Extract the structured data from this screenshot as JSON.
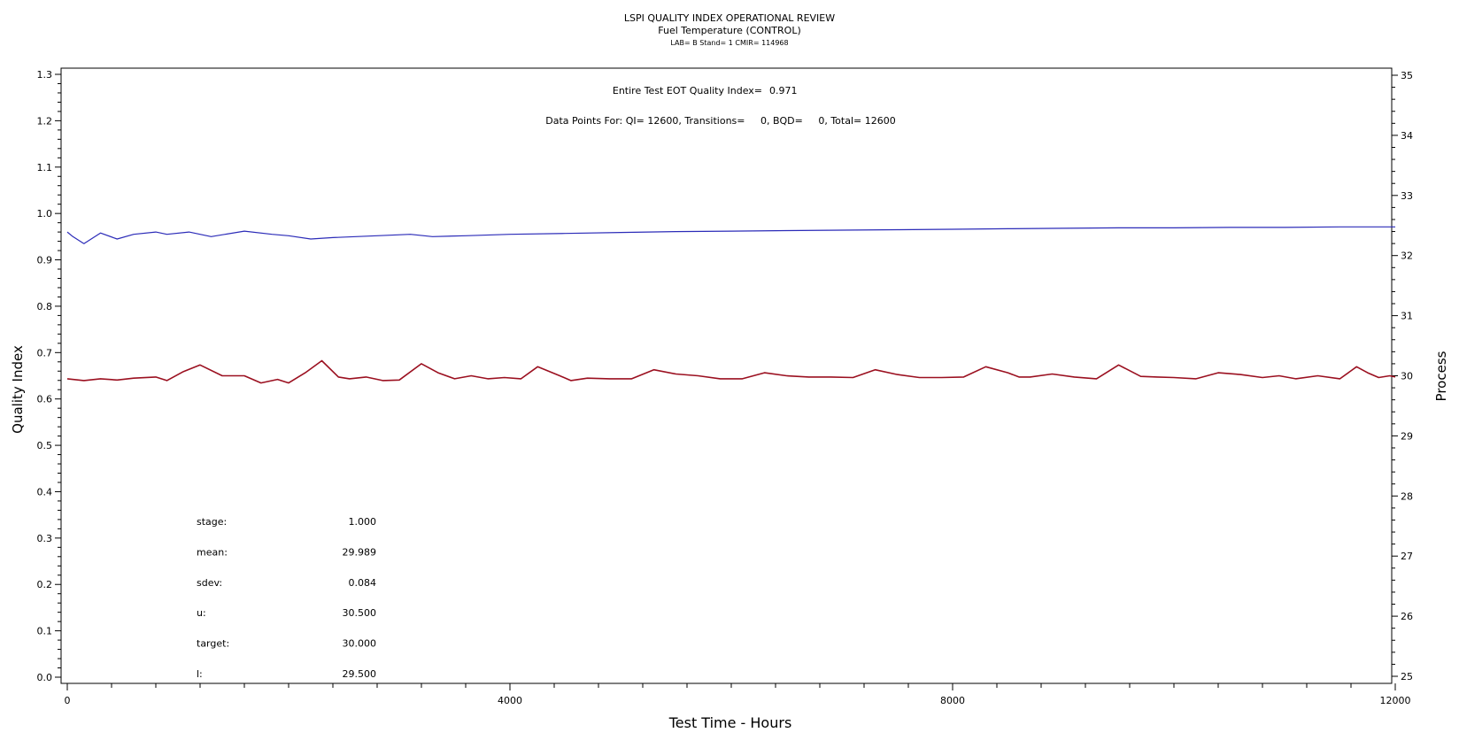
{
  "header": {
    "title": "LSPI QUALITY INDEX OPERATIONAL REVIEW",
    "subtitle": "Fuel Temperature (CONTROL)",
    "info": "LAB= B Stand= 1 CMIR= 114968"
  },
  "annotations": {
    "eot_label": "Entire Test EOT Quality Index=",
    "eot_value": "0.971",
    "points_line": "Data Points For: QI= 12600, Transitions=     0, BQD=     0, Total= 12600"
  },
  "stats": [
    {
      "label": "stage:",
      "value": "1.000"
    },
    {
      "label": "mean:",
      "value": "29.989"
    },
    {
      "label": "sdev:",
      "value": "0.084"
    },
    {
      "label": "u:",
      "value": "30.500"
    },
    {
      "label": "target:",
      "value": "30.000"
    },
    {
      "label": "l:",
      "value": "29.500"
    }
  ],
  "colors": {
    "quality_index": "#2b2bb8",
    "process": "#9b1020",
    "axis": "#000000"
  },
  "chart_data": {
    "type": "line",
    "title": "LSPI QUALITY INDEX OPERATIONAL REVIEW",
    "xlabel": "Test Time - Hours",
    "ylabel": "Quality Index",
    "y2label": "Process",
    "xlim": [
      0,
      12000
    ],
    "ylim": [
      0.0,
      1.3
    ],
    "y2lim": [
      25,
      35
    ],
    "x_ticks": [
      "0",
      "4000",
      "8000",
      "12000"
    ],
    "y_ticks": [
      "0.0",
      "0.1",
      "0.2",
      "0.3",
      "0.4",
      "0.5",
      "0.6",
      "0.7",
      "0.8",
      "0.9",
      "1.0",
      "1.1",
      "1.2",
      "1.3"
    ],
    "y2_ticks": [
      "25",
      "26",
      "27",
      "28",
      "29",
      "30",
      "31",
      "32",
      "33",
      "34",
      "35"
    ],
    "grid": false,
    "series": [
      {
        "axis": "left",
        "x": [
          0,
          50,
          150,
          300,
          450,
          600,
          800,
          900,
          1100,
          1300,
          1600,
          1850,
          2000,
          2200,
          2400,
          2800,
          3100,
          3300,
          3600,
          4000,
          4500,
          5000,
          5500,
          6000,
          6500,
          7000,
          7500,
          8000,
          8500,
          9000,
          9500,
          10000,
          10500,
          11000,
          11500,
          12000
        ],
        "y": [
          0.96,
          0.95,
          0.935,
          0.958,
          0.945,
          0.955,
          0.96,
          0.955,
          0.96,
          0.95,
          0.962,
          0.955,
          0.952,
          0.945,
          0.948,
          0.952,
          0.955,
          0.95,
          0.952,
          0.955,
          0.957,
          0.959,
          0.961,
          0.962,
          0.963,
          0.964,
          0.965,
          0.966,
          0.967,
          0.968,
          0.969,
          0.969,
          0.97,
          0.97,
          0.971,
          0.971
        ]
      },
      {
        "axis": "right",
        "x": [
          0,
          150,
          300,
          450,
          600,
          800,
          900,
          1050,
          1200,
          1400,
          1600,
          1750,
          1900,
          2000,
          2150,
          2300,
          2450,
          2550,
          2700,
          2850,
          3000,
          3200,
          3350,
          3500,
          3650,
          3800,
          3950,
          4100,
          4250,
          4450,
          4550,
          4700,
          4900,
          5100,
          5300,
          5500,
          5700,
          5900,
          6100,
          6300,
          6500,
          6700,
          6900,
          7100,
          7300,
          7500,
          7700,
          7900,
          8100,
          8300,
          8500,
          8600,
          8700,
          8900,
          9100,
          9300,
          9500,
          9700,
          9850,
          10000,
          10200,
          10400,
          10600,
          10800,
          10950,
          11100,
          11300,
          11500,
          11650,
          11750,
          11850,
          11950,
          12000
        ],
        "y": [
          29.95,
          29.92,
          29.95,
          29.93,
          29.96,
          29.98,
          29.92,
          30.07,
          30.18,
          30.0,
          30.0,
          29.88,
          29.94,
          29.88,
          30.05,
          30.25,
          29.98,
          29.95,
          29.98,
          29.92,
          29.93,
          30.2,
          30.05,
          29.95,
          30.0,
          29.95,
          29.97,
          29.95,
          30.15,
          30.0,
          29.92,
          29.96,
          29.95,
          29.95,
          30.1,
          30.03,
          30.0,
          29.95,
          29.95,
          30.05,
          30.0,
          29.98,
          29.98,
          29.97,
          30.1,
          30.02,
          29.97,
          29.97,
          29.98,
          30.15,
          30.05,
          29.98,
          29.98,
          30.03,
          29.98,
          29.95,
          30.18,
          29.99,
          29.98,
          29.97,
          29.95,
          30.05,
          30.02,
          29.97,
          30.0,
          29.95,
          30.0,
          29.95,
          30.15,
          30.05,
          29.97,
          30.0,
          29.98
        ]
      }
    ]
  }
}
